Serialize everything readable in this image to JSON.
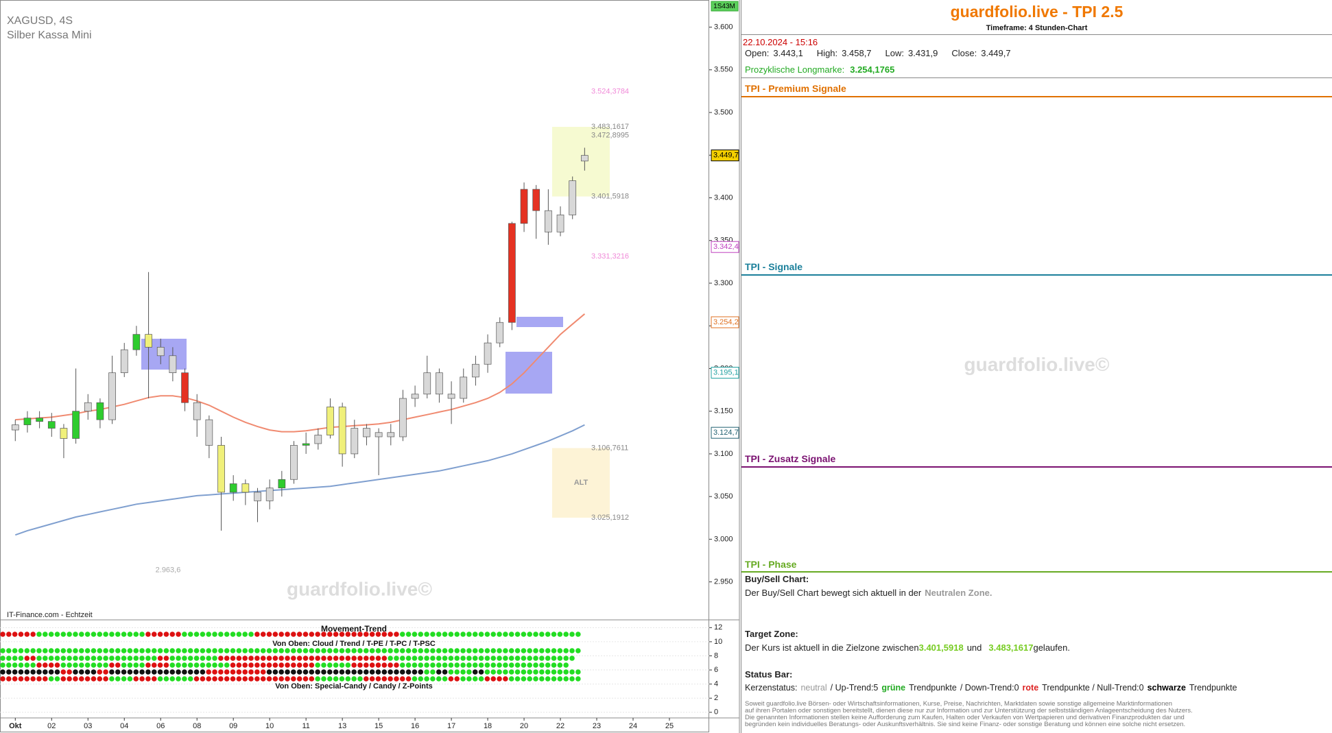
{
  "chart_data": {
    "type": "candlestick",
    "title": "XAGUSD, 4S",
    "subtitle": "Silber Kassa Mini",
    "source": "IT-Finance.com - Echtzeit",
    "watermark": "guardfolio.live©",
    "interval_badge": "1S43M",
    "categories": [
      "Okt",
      null,
      null,
      "02",
      null,
      null,
      "03",
      null,
      null,
      "04",
      null,
      null,
      "06",
      null,
      null,
      "08",
      null,
      null,
      "09",
      null,
      null,
      "10",
      null,
      null,
      "11",
      null,
      null,
      "13",
      null,
      null,
      "15",
      null,
      null,
      "16",
      null,
      null,
      "17",
      null,
      null,
      "18",
      null,
      null,
      "20",
      null,
      null,
      "22",
      null,
      null,
      "23",
      null,
      null,
      "24",
      null,
      null,
      "25"
    ],
    "open": [
      3.128,
      3.134,
      3.142,
      3.138,
      3.13,
      3.118,
      3.15,
      3.16,
      3.14,
      3.195,
      3.222,
      3.24,
      3.225,
      3.215,
      3.195,
      3.16,
      3.14,
      3.11,
      3.055,
      3.065,
      3.055,
      3.045,
      3.06,
      3.07,
      3.11,
      3.112,
      3.122,
      3.155,
      3.1,
      3.13,
      3.12,
      3.125,
      3.12,
      3.165,
      3.17,
      3.195,
      3.17,
      3.165,
      3.19,
      3.205,
      3.23,
      3.254,
      3.37,
      3.41,
      3.385,
      3.36,
      3.38,
      3.4431,
      null,
      null,
      null,
      null,
      null,
      null,
      null
    ],
    "high": [
      3.14,
      3.15,
      3.15,
      3.148,
      3.135,
      3.2,
      3.17,
      3.165,
      3.215,
      3.23,
      3.25,
      3.313,
      3.235,
      3.225,
      3.2,
      3.17,
      3.145,
      3.12,
      3.075,
      3.07,
      3.06,
      3.07,
      3.08,
      3.115,
      3.125,
      3.13,
      3.165,
      3.16,
      3.14,
      3.135,
      3.13,
      3.135,
      3.175,
      3.18,
      3.215,
      3.2,
      3.185,
      3.2,
      3.215,
      3.24,
      3.26,
      3.372,
      3.418,
      3.415,
      3.41,
      3.39,
      3.425,
      3.4587,
      null,
      null,
      null,
      null,
      null,
      null,
      null
    ],
    "low": [
      3.115,
      3.125,
      3.13,
      3.12,
      3.095,
      3.112,
      3.14,
      3.13,
      3.135,
      3.19,
      3.215,
      3.165,
      3.205,
      3.185,
      3.15,
      3.12,
      3.095,
      3.01,
      3.045,
      3.04,
      3.02,
      3.035,
      3.05,
      3.065,
      3.1,
      3.105,
      3.118,
      3.085,
      3.095,
      3.11,
      3.075,
      3.11,
      3.115,
      3.155,
      3.165,
      3.16,
      3.135,
      3.16,
      3.18,
      3.195,
      3.225,
      3.245,
      3.36,
      3.352,
      3.345,
      3.355,
      3.375,
      3.4319,
      null,
      null,
      null,
      null,
      null,
      null,
      null
    ],
    "close": [
      3.134,
      3.142,
      3.138,
      3.13,
      3.118,
      3.15,
      3.16,
      3.14,
      3.195,
      3.222,
      3.24,
      3.225,
      3.215,
      3.195,
      3.16,
      3.14,
      3.11,
      3.055,
      3.065,
      3.055,
      3.045,
      3.06,
      3.07,
      3.11,
      3.112,
      3.122,
      3.155,
      3.1,
      3.13,
      3.12,
      3.125,
      3.12,
      3.165,
      3.17,
      3.195,
      3.17,
      3.165,
      3.19,
      3.205,
      3.23,
      3.254,
      3.37,
      3.41,
      3.385,
      3.36,
      3.38,
      3.42,
      3.4497,
      null,
      null,
      null,
      null,
      null,
      null,
      null
    ],
    "candle_colors": [
      "#d8d8d8",
      "#2ecc2e",
      "#2ecc2e",
      "#2ecc2e",
      "#f0f07a",
      "#2ecc2e",
      "#d8d8d8",
      "#2ecc2e",
      "#d8d8d8",
      "#d8d8d8",
      "#2ecc2e",
      "#f0f07a",
      "#d8d8d8",
      "#d8d8d8",
      "#e53222",
      "#d8d8d8",
      "#d8d8d8",
      "#f0f07a",
      "#2ecc2e",
      "#f0f07a",
      "#d8d8d8",
      "#d8d8d8",
      "#2ecc2e",
      "#d8d8d8",
      "#2ecc2e",
      "#d8d8d8",
      "#f0f07a",
      "#f0f07a",
      "#d8d8d8",
      "#d8d8d8",
      "#d8d8d8",
      "#d8d8d8",
      "#d8d8d8",
      "#d8d8d8",
      "#d8d8d8",
      "#d8d8d8",
      "#d8d8d8",
      "#d8d8d8",
      "#d8d8d8",
      "#d8d8d8",
      "#d8d8d8",
      "#e53222",
      "#e53222",
      "#e53222",
      "#d8d8d8",
      "#d8d8d8",
      "#d8d8d8",
      "#d8d8d8",
      null,
      null,
      null,
      null,
      null,
      null,
      null
    ],
    "series": [
      {
        "color": "#7f9fcf",
        "values": [
          3.005,
          3.01,
          3.014,
          3.018,
          3.022,
          3.026,
          3.029,
          3.032,
          3.035,
          3.038,
          3.041,
          3.043,
          3.045,
          3.047,
          3.049,
          3.051,
          3.052,
          3.053,
          3.054,
          3.055,
          3.056,
          3.057,
          3.058,
          3.059,
          3.06,
          3.061,
          3.062,
          3.064,
          3.066,
          3.068,
          3.07,
          3.072,
          3.074,
          3.076,
          3.078,
          3.08,
          3.083,
          3.086,
          3.089,
          3.092,
          3.096,
          3.1,
          3.105,
          3.11,
          3.115,
          3.121,
          3.127,
          3.134,
          null,
          null,
          null,
          null,
          null,
          null,
          null
        ]
      },
      {
        "color": "#f08a70",
        "values": [
          3.14,
          3.141,
          3.142,
          3.143,
          3.145,
          3.147,
          3.15,
          3.152,
          3.155,
          3.158,
          3.162,
          3.166,
          3.168,
          3.168,
          3.166,
          3.162,
          3.157,
          3.15,
          3.143,
          3.137,
          3.132,
          3.128,
          3.126,
          3.126,
          3.127,
          3.129,
          3.131,
          3.132,
          3.133,
          3.134,
          3.135,
          3.137,
          3.14,
          3.143,
          3.146,
          3.149,
          3.152,
          3.156,
          3.16,
          3.165,
          3.172,
          3.182,
          3.195,
          3.21,
          3.225,
          3.24,
          3.252,
          3.264,
          null,
          null,
          null,
          null,
          null,
          null,
          null
        ]
      }
    ],
    "ylim": [
      2.9055,
      3.6318
    ],
    "yticks": [
      {
        "value": 2.95,
        "label": "2.950"
      },
      {
        "value": 3.0,
        "label": "3.000"
      },
      {
        "value": 3.05,
        "label": "3.050"
      },
      {
        "value": 3.1,
        "label": "3.100"
      },
      {
        "value": 3.15,
        "label": "3.150"
      },
      {
        "value": 3.2,
        "label": "3.200"
      },
      {
        "value": 3.25,
        "label": "3.250"
      },
      {
        "value": 3.3,
        "label": "3.300"
      },
      {
        "value": 3.35,
        "label": "3.350"
      },
      {
        "value": 3.4,
        "label": "3.400"
      },
      {
        "value": 3.45,
        "label": "3.450"
      },
      {
        "value": 3.5,
        "label": "3.500"
      },
      {
        "value": 3.55,
        "label": "3.550"
      },
      {
        "value": 3.6,
        "label": "3.600"
      }
    ],
    "axis_labels": [
      {
        "value": 3.4497,
        "label": "3.449,7",
        "color": "#000000",
        "background": "#f5d000"
      },
      {
        "value": 3.3424,
        "label": "3.342,4",
        "color": "#c040c0"
      },
      {
        "value": 3.2542,
        "label": "3.254,2",
        "color": "#e07020"
      },
      {
        "value": 3.1951,
        "label": "3.195,1",
        "color": "#20a0a0"
      },
      {
        "value": 3.1247,
        "label": "3.124,7",
        "color": "#206070"
      }
    ],
    "levels": [
      {
        "value": 3.5243784,
        "label": "3.524,3784",
        "color": "#f08ad8"
      },
      {
        "value": 3.4831617,
        "label": "3.483,1617",
        "color": "#888888"
      },
      {
        "value": 3.4728995,
        "label": "3.472,8995",
        "color": "#888888"
      },
      {
        "value": 3.4015918,
        "label": "3.401,5918",
        "color": "#888888"
      },
      {
        "value": 3.3313216,
        "label": "3.331,3216",
        "color": "#f08ad8"
      },
      {
        "value": 3.1067611,
        "label": "3.106,7611",
        "color": "#888888"
      },
      {
        "value": 3.0251912,
        "label": "3.025,1912",
        "color": "#888888"
      }
    ],
    "alt_label": "ALT",
    "low_label": {
      "value": 2.9636,
      "label": "2.963,6"
    },
    "indicator": {
      "title": "Movement-Trend",
      "subtitle_top": "Von Oben: Cloud / Trend / T-PE / T-PC / T-PSC",
      "subtitle_bottom": "Von Oben: Special-Candy / Candy / Z-Points",
      "ylim": [
        -0.7,
        13.1
      ],
      "yticks": [
        0,
        2,
        4,
        6,
        8,
        10,
        12
      ],
      "dot_colors": {
        "g": "#22dd22",
        "r": "#dd1111",
        "k": "#111111"
      },
      "rows": [
        "rrrrrrggggggggggggggggggrrrrrrggggggggggggrrrrrrrrrrrrrrrrrrrrrrrrgggggggggggggggggggggggggggggg",
        "gggggggggggggggggggggggggggggggggggggggggggggggggggggggggggggggggggggggggggggggggggggggggggggggg",
        "ggggrrggggggggggggggggggggrrggggggggrrrrrrrrrrrrrrrrrrrrrrrrrrrrggggggggggggggggggggggggggggggg",
        "ggggggrrrrggggggggrrggggrrrrggggggggggrrrrrrrrrrrrrrggggggrrrrrrrrgggggggggggggggggggggggggggg",
        "kkkkkkkkkkrrkkkkrrkkkkkkkkkkkkkkkkrrrrrrrrrrkkkkkkkkkkkkkkkkkkkkkkkkkkggkkggggkkgggggggggggggggg",
        "rrrrrrrrggrrrrrrrrggggrrrrggggggrrrrrrrrrrrrrrrrrrrrggggggggrrrrrrrrggggggrrggggrrrrgggggggggggg"
      ]
    }
  },
  "panel": {
    "title": "guardfolio.live - TPI 2.5",
    "timeframe": "Timeframe: 4 Stunden-Chart",
    "datetime": "22.10.2024 - 15:16",
    "ohlc": [
      {
        "label": "Open:",
        "value": "3.443,1"
      },
      {
        "label": "High:",
        "value": "3.458,7"
      },
      {
        "label": "Low:",
        "value": "3.431,9"
      },
      {
        "label": "Close:",
        "value": "3.449,7"
      }
    ],
    "longmark": {
      "label": "Prozyklische Longmarke:",
      "value": "3.254,1765"
    },
    "sections": [
      {
        "title": "TPI - Premium Signale",
        "color": "#e07000"
      },
      {
        "title": "TPI - Signale",
        "color": "#1a7f9a"
      },
      {
        "title": "TPI - Zusatz Signale",
        "color": "#7a1070"
      },
      {
        "title": "TPI - Phase",
        "color": "#66aa22"
      }
    ],
    "watermark": "guardfolio.live©",
    "buy_sell": {
      "heading": "Buy/Sell Chart:",
      "text": "Der Buy/Sell Chart bewegt sich aktuell in der",
      "zone": "Neutralen Zone."
    },
    "target": {
      "heading": "Target Zone:",
      "text": "Der Kurs ist aktuell in die Zielzone zwischen",
      "low": "3.401,5918",
      "and": "und",
      "high": "3.483,1617",
      "end": "gelaufen."
    },
    "status": {
      "heading": "Status Bar:",
      "parts": [
        {
          "text": "Kerzenstatus:"
        },
        {
          "text": "neutral",
          "color": "#999999"
        },
        {
          "text": "/ Up-Trend:5"
        },
        {
          "text": "grüne",
          "color": "#22aa22",
          "bold": true
        },
        {
          "text": "Trendpunkte"
        },
        {
          "text": "/ Down-Trend:0"
        },
        {
          "text": "rote",
          "color": "#dd2222",
          "bold": true
        },
        {
          "text": "Trendpunkte / Null-Trend:0"
        },
        {
          "text": "schwarze",
          "color": "#000000",
          "bold": true
        },
        {
          "text": "Trendpunkte"
        }
      ]
    },
    "disclaimer": [
      "Soweit guardfolio.live Börsen- oder Wirtschaftsinformationen, Kurse, Preise, Nachrichten, Marktdaten sowie sonstige allgemeine Marktinformationen",
      "auf ihren Portalen oder sonstigen bereitstellt, dienen diese nur zur Information und zur Unterstützung der selbstständigen Anlageentscheidung des Nutzers.",
      "Die genannten Informationen stellen keine Aufforderung zum Kaufen, Halten oder Verkaufen von Wertpapieren und derivativen Finanzprodukten dar und",
      "begründen kein individuelles Beratungs- oder Auskunftsverhältnis. Sie sind keine Finanz- oder sonstige Beratung und können eine solche nicht ersetzen."
    ]
  }
}
